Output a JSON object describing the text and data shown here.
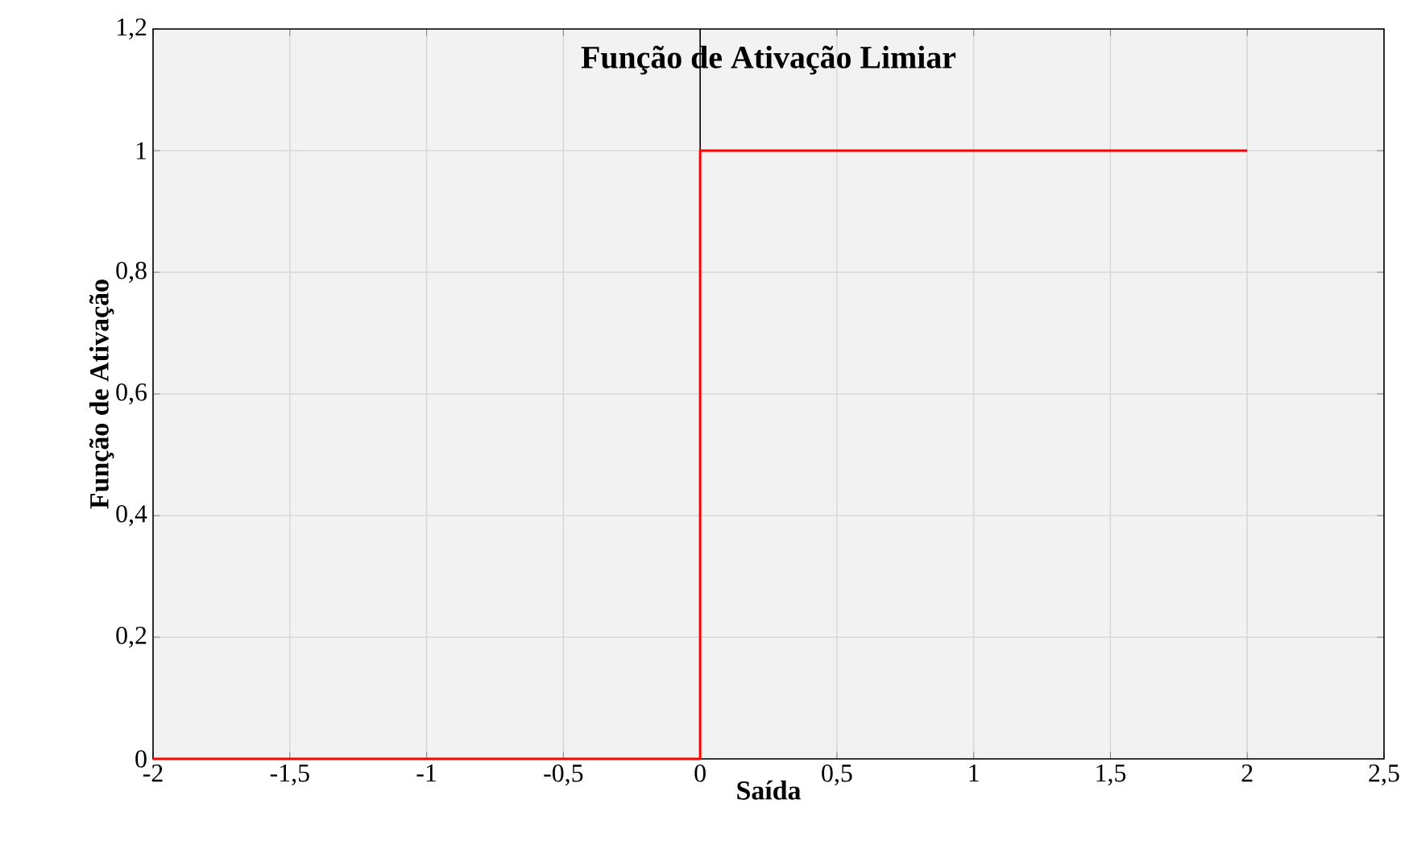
{
  "chart_data": {
    "type": "line",
    "title": "Função de Ativação Limiar",
    "xlabel": "Saída",
    "ylabel": "Função de Ativação",
    "x": [
      -2,
      0,
      0,
      2
    ],
    "series": [
      {
        "color": "#ff0000",
        "values": [
          0,
          0,
          1,
          1
        ]
      }
    ],
    "xlim": [
      -2,
      2.5
    ],
    "ylim": [
      0,
      1.2
    ],
    "xticks": [
      -2,
      {
        "value": -1.5,
        "label": "-1,5"
      },
      -1,
      {
        "value": -0.5,
        "label": "-0,5"
      },
      0,
      {
        "value": 0.5,
        "label": "0,5"
      },
      1,
      {
        "value": 1.5,
        "label": "1,5"
      },
      2,
      {
        "value": 2.5,
        "label": "2,5"
      }
    ],
    "yticks": [
      0,
      {
        "value": 0.2,
        "label": "0,2"
      },
      {
        "value": 0.4,
        "label": "0,4"
      },
      {
        "value": 0.6,
        "label": "0,6"
      },
      {
        "value": 0.8,
        "label": "0,8"
      },
      1,
      {
        "value": 1.2,
        "label": "1,2"
      }
    ],
    "ref_lines": [
      {
        "axis": "x",
        "value": 0,
        "color": "#000000"
      }
    ],
    "grid": true,
    "marker": "none",
    "line_style": "solid"
  }
}
